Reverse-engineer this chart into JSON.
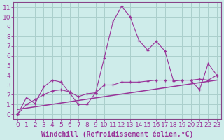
{
  "xlabel": "Windchill (Refroidissement éolien,°C)",
  "background_color": "#ceecea",
  "grid_color": "#aacfcc",
  "spine_color": "#884488",
  "line_color": "#993399",
  "xlim": [
    -0.5,
    23.5
  ],
  "ylim": [
    -0.5,
    11.5
  ],
  "xticks": [
    0,
    1,
    2,
    3,
    4,
    5,
    6,
    7,
    8,
    9,
    10,
    11,
    12,
    13,
    14,
    15,
    16,
    17,
    18,
    19,
    20,
    21,
    22,
    23
  ],
  "yticks": [
    0,
    1,
    2,
    3,
    4,
    5,
    6,
    7,
    8,
    9,
    10,
    11
  ],
  "line1_x": [
    0,
    1,
    2,
    3,
    4,
    5,
    6,
    7,
    8,
    9,
    10,
    11,
    12,
    13,
    14,
    15,
    16,
    17,
    18,
    19,
    20,
    21,
    22,
    23
  ],
  "line1_y": [
    0.0,
    1.7,
    1.1,
    2.8,
    3.5,
    3.3,
    2.2,
    1.0,
    1.0,
    2.2,
    5.8,
    9.5,
    11.1,
    10.0,
    7.6,
    6.6,
    7.5,
    6.5,
    3.4,
    3.5,
    3.5,
    2.5,
    5.2,
    4.0
  ],
  "line2_x": [
    0,
    1,
    2,
    3,
    4,
    5,
    6,
    7,
    8,
    9,
    10,
    11,
    12,
    13,
    14,
    15,
    16,
    17,
    18,
    19,
    20,
    21,
    22,
    23
  ],
  "line2_y": [
    0.0,
    1.0,
    1.5,
    2.0,
    2.4,
    2.5,
    2.3,
    1.8,
    2.1,
    2.2,
    3.0,
    3.0,
    3.3,
    3.3,
    3.3,
    3.4,
    3.5,
    3.5,
    3.5,
    3.5,
    3.5,
    3.6,
    3.5,
    4.0
  ],
  "line3_x": [
    0,
    23
  ],
  "line3_y": [
    0.5,
    3.5
  ],
  "tick_fontsize": 6.5,
  "xlabel_fontsize": 7
}
